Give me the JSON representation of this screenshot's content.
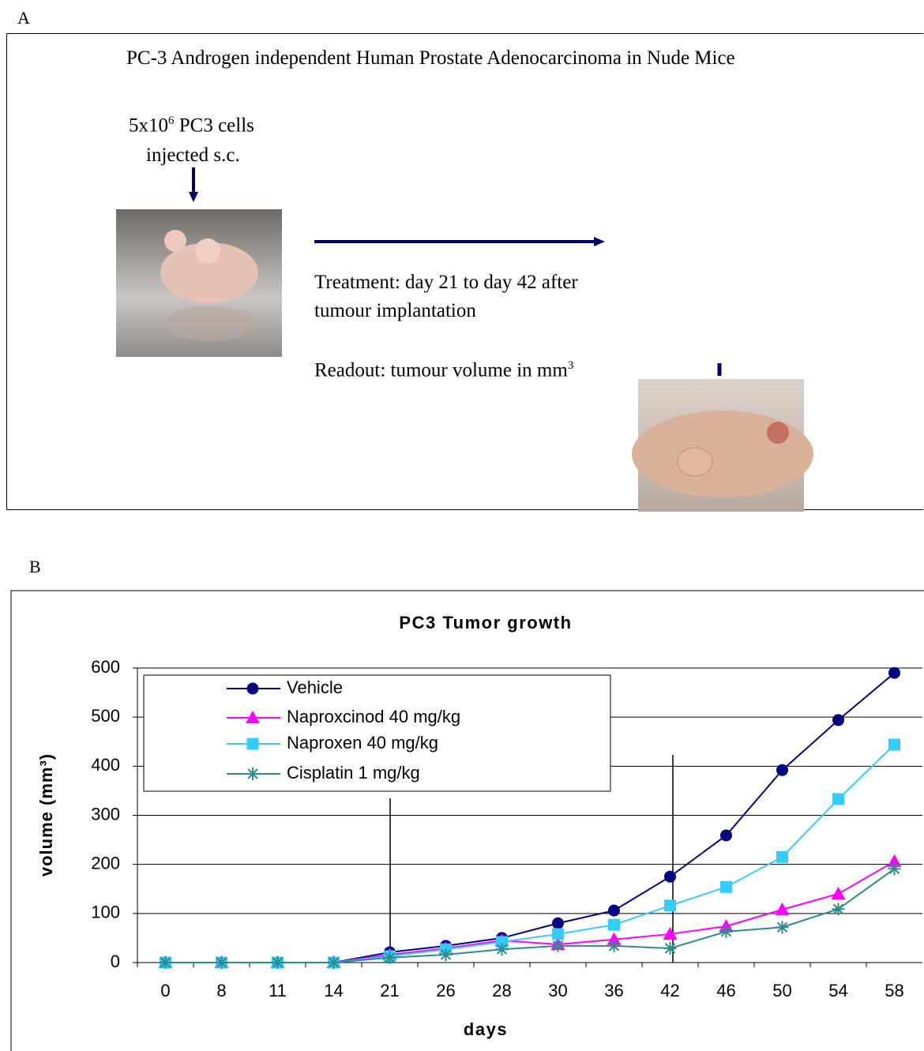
{
  "panel_a": {
    "label": "A",
    "title": "PC-3 Androgen independent Human Prostate Adenocarcinoma in Nude Mice",
    "injection": {
      "line1_start": "5x10",
      "line1_sup": "6",
      "line1_end": " PC3 cells",
      "line2": "injected s.c."
    },
    "treatment": {
      "line1": "Treatment: day 21 to day 42 after",
      "line2": "tumour implantation"
    },
    "readout": {
      "text": "Readout: tumour volume in mm",
      "sup": "3"
    }
  },
  "panel_b": {
    "label": "B"
  },
  "chart_data": {
    "type": "line",
    "title": "PC3 Tumor growth",
    "x_label": "days",
    "y_label": "volume (mm³)",
    "categories": [
      "0",
      "8",
      "11",
      "14",
      "21",
      "26",
      "28",
      "30",
      "36",
      "42",
      "46",
      "50",
      "54",
      "58"
    ],
    "ylim": [
      0,
      600
    ],
    "yticks": [
      0,
      100,
      200,
      300,
      400,
      500,
      600
    ],
    "grid": true,
    "series": [
      {
        "name": "Vehicle",
        "color": "#000080",
        "marker": "circle",
        "values": [
          0,
          0,
          0,
          0,
          21,
          34,
          50,
          80,
          106,
          175,
          259,
          392,
          494,
          590
        ]
      },
      {
        "name": "Naproxcinod 40 mg/kg",
        "color": "#ff00ff",
        "marker": "triangle",
        "values": [
          0,
          0,
          0,
          0,
          16,
          29,
          45,
          37,
          47,
          58,
          74,
          108,
          140,
          206
        ]
      },
      {
        "name": "Naproxen 40 mg/kg",
        "color": "#33ccff",
        "marker": "square",
        "values": [
          0,
          0,
          0,
          0,
          13,
          27,
          42,
          58,
          77,
          116,
          154,
          215,
          333,
          444
        ]
      },
      {
        "name": "Cisplatin 1 mg/kg",
        "color": "#2e8b8b",
        "marker": "asterisk",
        "values": [
          0,
          0,
          0,
          0,
          10,
          16,
          27,
          34,
          34,
          29,
          63,
          72,
          109,
          191
        ]
      }
    ]
  }
}
